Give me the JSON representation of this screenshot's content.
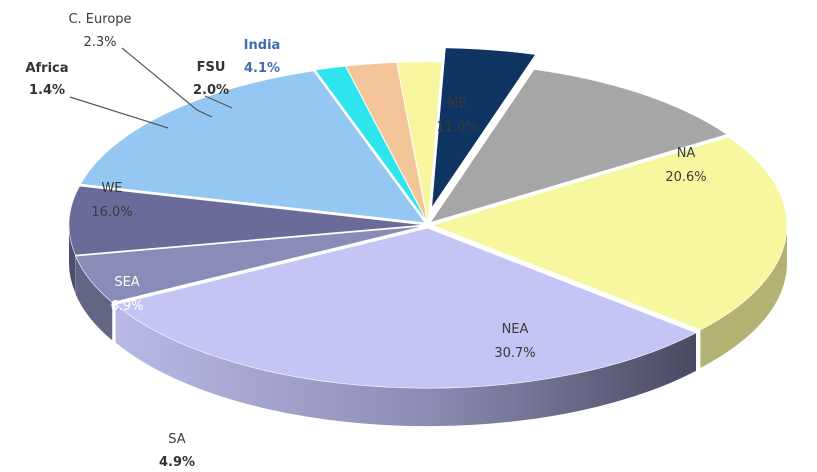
{
  "chart_data": {
    "type": "pie",
    "title": "",
    "style": "3d-exploded",
    "slices": [
      {
        "name": "ME",
        "pct": "11.0%",
        "value": 11.0,
        "color": "#a6a6a6"
      },
      {
        "name": "NA",
        "pct": "20.6%",
        "value": 20.6,
        "color": "#f7f7a0"
      },
      {
        "name": "NEA",
        "pct": "30.7%",
        "value": 30.7,
        "color": "#c4c4f5"
      },
      {
        "name": "SA",
        "pct": "4.9%",
        "value": 4.9,
        "color": "#8a8cb8"
      },
      {
        "name": "SEA",
        "pct": "6.9%",
        "value": 6.9,
        "color": "#6b6b9a"
      },
      {
        "name": "WE",
        "pct": "16.0%",
        "value": 16.0,
        "color": "#94c8f2"
      },
      {
        "name": "Africa",
        "pct": "1.4%",
        "value": 1.4,
        "color": "#2ee5ee"
      },
      {
        "name": "C. Europe",
        "pct": "2.3%",
        "value": 2.3,
        "color": "#f5c59a"
      },
      {
        "name": "FSU",
        "pct": "2.0%",
        "value": 2.0,
        "color": "#f7f59e"
      },
      {
        "name": "India",
        "pct": "4.1%",
        "value": 4.1,
        "color": "#0f3461",
        "highlight": true
      }
    ],
    "highlight_label_color": "#3d6fb0"
  }
}
